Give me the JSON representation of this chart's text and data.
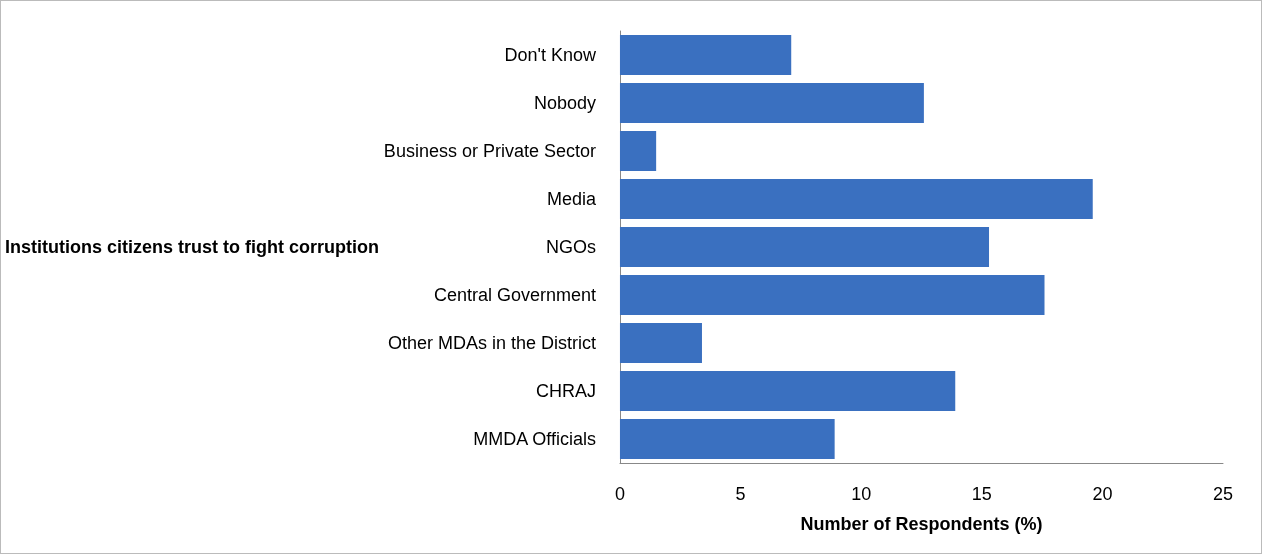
{
  "chart_data": {
    "type": "bar",
    "orientation": "horizontal",
    "ylabel": "Institutions citizens trust to fight corruption",
    "xlabel": "Number of Respondents (%)",
    "categories": [
      "Don't Know",
      "Nobody",
      "Business or Private Sector",
      "Media",
      "NGOs",
      "Central Government",
      "Other MDAs in the District",
      "CHRAJ",
      "MMDA Officials"
    ],
    "values": [
      7.1,
      12.6,
      1.5,
      19.6,
      15.3,
      17.6,
      3.4,
      13.9,
      8.9
    ],
    "color": "#3a70c0",
    "xlim": [
      0,
      25
    ],
    "xticks": [
      0,
      5,
      10,
      15,
      20,
      25
    ],
    "grid": false
  }
}
